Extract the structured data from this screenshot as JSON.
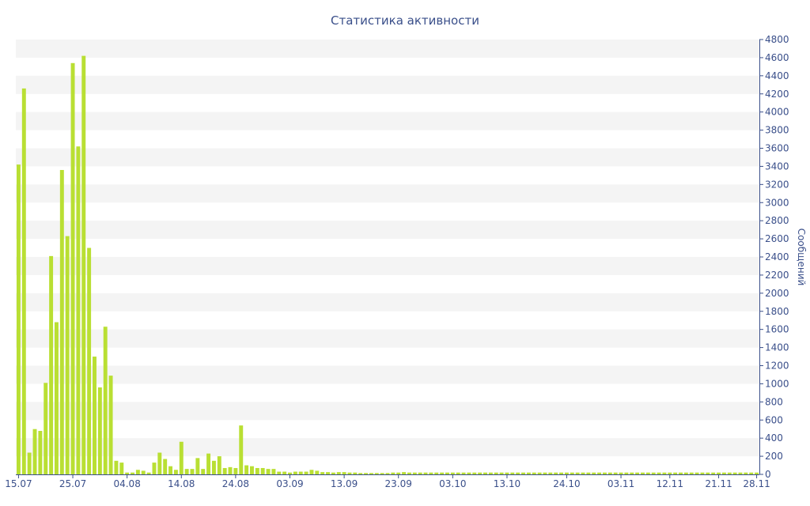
{
  "colors": {
    "bar": "#b9df33",
    "axis": "#3a4f8a",
    "band": "#f4f4f4"
  },
  "chart_data": {
    "type": "bar",
    "title": "Статистика активности",
    "xlabel": "",
    "ylabel": "Сообщений",
    "y_axis_side": "right",
    "ylim": [
      0,
      4800
    ],
    "yticks": [
      0,
      200,
      400,
      600,
      800,
      1000,
      1200,
      1400,
      1600,
      1800,
      2000,
      2200,
      2400,
      2600,
      2800,
      3000,
      3200,
      3400,
      3600,
      3800,
      4000,
      4200,
      4400,
      4600,
      4800
    ],
    "grid": "alternating horizontal bands",
    "categories": [
      "15.07",
      "16.07",
      "17.07",
      "18.07",
      "19.07",
      "20.07",
      "21.07",
      "22.07",
      "23.07",
      "24.07",
      "25.07",
      "26.07",
      "27.07",
      "28.07",
      "29.07",
      "30.07",
      "31.07",
      "01.08",
      "02.08",
      "03.08",
      "04.08",
      "05.08",
      "06.08",
      "07.08",
      "08.08",
      "09.08",
      "10.08",
      "11.08",
      "12.08",
      "13.08",
      "14.08",
      "15.08",
      "16.08",
      "17.08",
      "18.08",
      "19.08",
      "20.08",
      "21.08",
      "22.08",
      "23.08",
      "24.08",
      "25.08",
      "26.08",
      "27.08",
      "28.08",
      "29.08",
      "30.08",
      "31.08",
      "01.09",
      "02.09",
      "03.09",
      "04.09",
      "05.09",
      "06.09",
      "07.09",
      "08.09",
      "09.09",
      "10.09",
      "11.09",
      "12.09",
      "13.09",
      "14.09",
      "15.09",
      "16.09",
      "17.09",
      "18.09",
      "19.09",
      "20.09",
      "21.09",
      "22.09",
      "23.09",
      "24.09",
      "25.09",
      "26.09",
      "27.09",
      "28.09",
      "29.09",
      "30.09",
      "01.10",
      "02.10",
      "03.10",
      "04.10",
      "05.10",
      "06.10",
      "07.10",
      "08.10",
      "09.10",
      "10.10",
      "11.10",
      "12.10",
      "13.10",
      "14.10",
      "15.10",
      "16.10",
      "17.10",
      "18.10",
      "19.10",
      "20.10",
      "21.10",
      "22.10",
      "23.10",
      "24.10",
      "25.10",
      "26.10",
      "27.10",
      "28.10",
      "29.10",
      "30.10",
      "31.10",
      "01.11",
      "02.11",
      "03.11",
      "04.11",
      "05.11",
      "06.11",
      "07.11",
      "08.11",
      "09.11",
      "10.11",
      "11.11",
      "12.11",
      "13.11",
      "14.11",
      "15.11",
      "16.11",
      "17.11",
      "18.11",
      "19.11",
      "20.11",
      "21.11",
      "22.11",
      "23.11",
      "24.11",
      "25.11",
      "26.11",
      "27.11",
      "28.11"
    ],
    "visible_tick_labels": [
      "15.07",
      "25.07",
      "04.08",
      "14.08",
      "24.08",
      "03.09",
      "13.09",
      "23.09",
      "03.10",
      "13.10",
      "24.10",
      "03.11",
      "12.11",
      "21.11",
      "28.11"
    ],
    "bar_positions": [
      0,
      1,
      2,
      3,
      4,
      5,
      6,
      7,
      8,
      9,
      10,
      11,
      12,
      13,
      14,
      15,
      16,
      17,
      18,
      19,
      20,
      21,
      22,
      23,
      24,
      25,
      26,
      27,
      28,
      29,
      30,
      31,
      32,
      33,
      34,
      35,
      36,
      37,
      38,
      39,
      40,
      41,
      42,
      43,
      44,
      45,
      46,
      47,
      48,
      49,
      50,
      51,
      52,
      53,
      54,
      55,
      56,
      57,
      58,
      59,
      60,
      61,
      62,
      63,
      64,
      65,
      66,
      67,
      68,
      69,
      70,
      71,
      72,
      73,
      74,
      75,
      76,
      77,
      78,
      79,
      80,
      81,
      82,
      83,
      84,
      85,
      86,
      87,
      88,
      89,
      90,
      91,
      92,
      93,
      94,
      95,
      96,
      97,
      98,
      99,
      100,
      101,
      102,
      103,
      104,
      105,
      106,
      107,
      108,
      109,
      110,
      111,
      112,
      113,
      114,
      115,
      116,
      117,
      118,
      119,
      120,
      121,
      122,
      123,
      124,
      125,
      126,
      127,
      128,
      129,
      130,
      131,
      132,
      133,
      134,
      135,
      136
    ],
    "values": [
      3420,
      4260,
      240,
      500,
      480,
      1010,
      2410,
      1680,
      3360,
      2630,
      4540,
      3620,
      4620,
      2500,
      1300,
      960,
      1630,
      1090,
      150,
      130,
      20,
      20,
      50,
      40,
      20,
      130,
      240,
      170,
      90,
      50,
      360,
      60,
      60,
      180,
      60,
      230,
      150,
      200,
      70,
      80,
      70,
      540,
      100,
      90,
      70,
      70,
      60,
      60,
      30,
      30,
      20,
      30,
      30,
      30,
      50,
      40,
      25,
      25,
      20,
      25,
      25,
      20,
      20,
      15,
      15,
      15,
      15,
      15,
      15,
      20,
      20,
      25,
      20,
      20,
      20,
      20,
      20,
      20,
      20,
      20,
      20,
      20,
      20,
      20,
      20,
      20,
      20,
      20,
      20,
      20,
      20,
      20,
      20,
      20,
      20,
      20,
      20,
      20,
      20,
      20,
      20,
      20,
      20,
      20,
      20,
      20,
      20,
      20,
      20,
      20,
      20,
      20,
      20,
      20,
      20,
      20,
      20,
      20,
      20,
      20,
      20,
      20,
      20,
      20,
      20,
      20,
      20,
      20,
      20,
      20,
      20,
      20,
      20,
      20,
      20,
      20,
      20
    ]
  }
}
